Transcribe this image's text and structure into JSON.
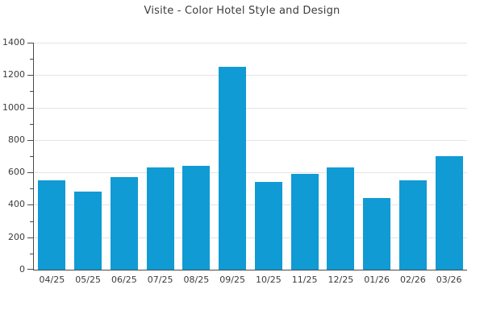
{
  "title": "Visite - Color Hotel Style and Design",
  "colors": {
    "bar": "#109bd4",
    "grid": "#e4e4e4",
    "axis": "#4a4a4a",
    "text": "#3c3c3c",
    "background": "#ffffff"
  },
  "chart_data": {
    "type": "bar",
    "title": "Visite - Color Hotel Style and Design",
    "categories": [
      "04/25",
      "05/25",
      "06/25",
      "07/25",
      "08/25",
      "09/25",
      "10/25",
      "11/25",
      "12/25",
      "01/26",
      "02/26",
      "03/26"
    ],
    "values": [
      550,
      480,
      570,
      630,
      640,
      1250,
      540,
      590,
      630,
      440,
      550,
      700
    ],
    "xlabel": "",
    "ylabel": "",
    "ylim": [
      0,
      1400
    ],
    "ytick_interval": 200,
    "yminor_tick_interval": 100,
    "ytick_labels": [
      "0",
      "200",
      "400",
      "600",
      "800",
      "1000",
      "1200",
      "1400"
    ],
    "grid": true,
    "legend": false,
    "series_name": "Visite"
  }
}
